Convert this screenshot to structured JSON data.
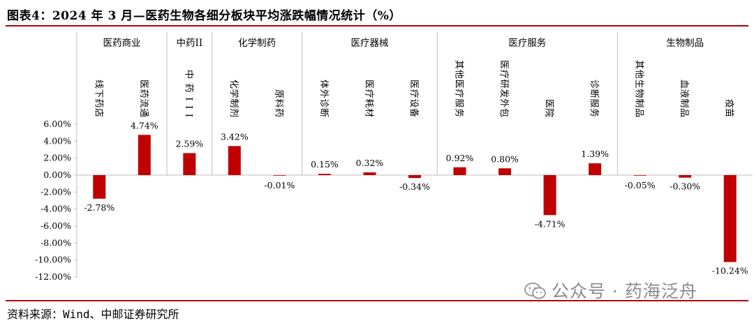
{
  "header": {
    "title": "图表4：2024 年 3 月—医药生物各细分板块平均涨跌幅情况统计（%）"
  },
  "footer": {
    "source": "资料来源：Wind、中邮证券研究所",
    "watermark": "公众号 · 药海泛舟"
  },
  "chart_data": {
    "type": "bar",
    "groups": [
      {
        "name": "医药商业",
        "categories": [
          "线下药店",
          "医药流通"
        ]
      },
      {
        "name": "中药II",
        "categories": [
          "中药III"
        ]
      },
      {
        "name": "化学制药",
        "categories": [
          "化学制剂",
          "原料药"
        ]
      },
      {
        "name": "医疗器械",
        "categories": [
          "体外诊断",
          "医疗耗材",
          "医疗设备"
        ]
      },
      {
        "name": "医疗服务",
        "categories": [
          "其他医疗服务",
          "医疗研发外包",
          "医院",
          "诊断服务"
        ]
      },
      {
        "name": "生物制品",
        "categories": [
          "其他生物制品",
          "血液制品",
          "疫苗"
        ]
      }
    ],
    "categories": [
      "线下药店",
      "医药流通",
      "中药III",
      "化学制剂",
      "原料药",
      "体外诊断",
      "医疗耗材",
      "医疗设备",
      "其他医疗服务",
      "医疗研发外包",
      "医院",
      "诊断服务",
      "其他生物制品",
      "血液制品",
      "疫苗"
    ],
    "values": [
      -2.78,
      4.74,
      2.59,
      3.42,
      -0.01,
      0.15,
      0.32,
      -0.34,
      0.92,
      0.8,
      -4.71,
      1.39,
      -0.05,
      -0.3,
      -10.24
    ],
    "value_labels": [
      "-2.78%",
      "4.74%",
      "2.59%",
      "3.42%",
      "-0.01%",
      "0.15%",
      "0.32%",
      "-0.34%",
      "0.92%",
      "0.80%",
      "-4.71%",
      "1.39%",
      "-0.05%",
      "-0.30%",
      "-10.24%"
    ],
    "yticks": [
      "6.00%",
      "4.00%",
      "2.00%",
      "0.00%",
      "-2.00%",
      "-4.00%",
      "-6.00%",
      "-8.00%",
      "-10.00%",
      "-12.00%"
    ],
    "ylim": [
      -12,
      6
    ],
    "bar_color": "#c00000",
    "grid": false
  }
}
